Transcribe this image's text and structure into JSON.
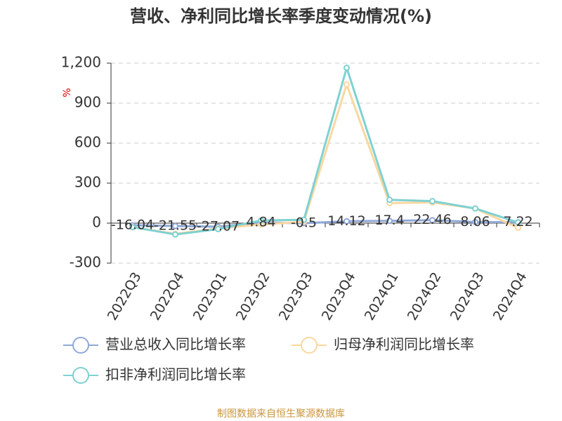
{
  "chart_data": {
    "type": "line",
    "title": "营收、净利同比增长率季度变动情况(%)",
    "y_unit": "%",
    "source": "制图数据来自恒生聚源数据库",
    "categories": [
      "2022Q3",
      "2022Q4",
      "2023Q1",
      "2023Q2",
      "2023Q3",
      "2023Q4",
      "2024Q1",
      "2024Q2",
      "2024Q3",
      "2024Q4"
    ],
    "series": [
      {
        "name": "营业总收入同比增长率",
        "color": "#8fa8d8",
        "values": [
          -16.04,
          -21.55,
          -27.07,
          4.84,
          -0.5,
          14.12,
          17.4,
          22.46,
          8.06,
          7.22
        ],
        "data_labels": true
      },
      {
        "name": "归母净利润同比增长率",
        "color": "#fad7a0",
        "values": [
          -30,
          -80,
          -40,
          -10,
          10,
          1040,
          150,
          155,
          110,
          -35
        ]
      },
      {
        "name": "扣非净利润同比增长率",
        "color": "#7fd1d1",
        "values": [
          -30,
          -85,
          -45,
          20,
          25,
          1165,
          175,
          165,
          110,
          5
        ]
      }
    ],
    "ylim": [
      -300,
      1200
    ],
    "yticks": [
      -300,
      0,
      300,
      600,
      900,
      {
        "value": 1200,
        "label": "1,200"
      }
    ],
    "grid": true
  }
}
